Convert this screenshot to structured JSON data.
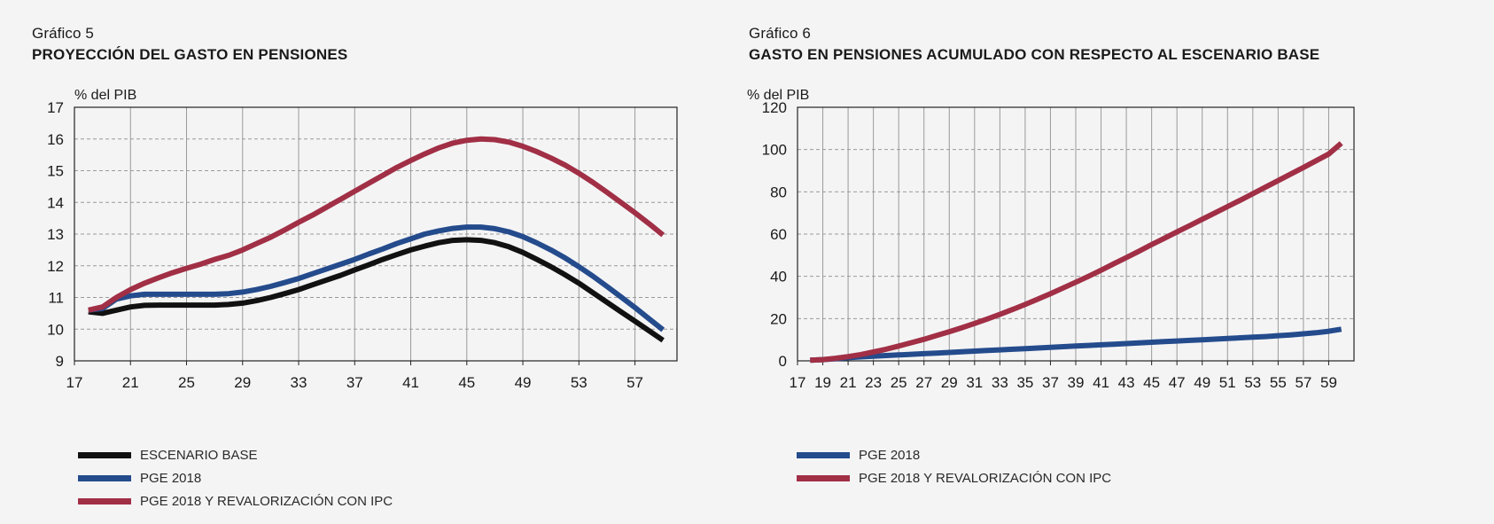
{
  "charts": [
    {
      "label": "Gráfico 5",
      "title": "PROYECCIÓN DEL GASTO EN PENSIONES",
      "unit": "% del PIB",
      "legend": [
        "ESCENARIO BASE",
        "PGE 2018",
        "PGE 2018 Y REVALORIZACIÓN CON IPC"
      ]
    },
    {
      "label": "Gráfico 6",
      "title": "GASTO EN PENSIONES ACUMULADO CON RESPECTO AL ESCENARIO BASE",
      "unit": "% del PIB",
      "legend": [
        "PGE 2018",
        "PGE 2018 Y REVALORIZACIÓN CON IPC"
      ]
    }
  ],
  "colors": {
    "black": "#111111",
    "blue": "#244b8c",
    "red": "#a12f45",
    "grid": "#9a9a9a"
  },
  "chart_data": [
    {
      "type": "line",
      "title": "PROYECCIÓN DEL GASTO EN PENSIONES",
      "ylabel": "% del PIB",
      "xlim": [
        17,
        60
      ],
      "ylim": [
        9,
        17
      ],
      "xticks": [
        "17",
        "21",
        "25",
        "29",
        "33",
        "37",
        "41",
        "45",
        "49",
        "53",
        "57"
      ],
      "yticks": [
        "9",
        "10",
        "11",
        "12",
        "13",
        "14",
        "15",
        "16",
        "17"
      ],
      "grid": true,
      "legend_position": "bottom",
      "x": [
        18,
        19,
        20,
        21,
        22,
        23,
        24,
        25,
        26,
        27,
        28,
        29,
        30,
        31,
        32,
        33,
        34,
        35,
        36,
        37,
        38,
        39,
        40,
        41,
        42,
        43,
        44,
        45,
        46,
        47,
        48,
        49,
        50,
        51,
        52,
        53,
        54,
        55,
        56,
        57,
        58,
        59,
        60
      ],
      "series": [
        {
          "name": "ESCENARIO BASE",
          "color": "black",
          "values": [
            10.55,
            10.5,
            10.6,
            10.7,
            10.75,
            10.76,
            10.76,
            10.76,
            10.76,
            10.76,
            10.78,
            10.82,
            10.9,
            11.0,
            11.12,
            11.25,
            11.4,
            11.55,
            11.7,
            11.87,
            12.03,
            12.2,
            12.35,
            12.5,
            12.62,
            12.73,
            12.8,
            12.82,
            12.8,
            12.73,
            12.6,
            12.42,
            12.2,
            11.97,
            11.72,
            11.45,
            11.15,
            10.85,
            10.55,
            10.25,
            9.95,
            9.65,
            null
          ]
        },
        {
          "name": "PGE 2018",
          "color": "blue",
          "values": [
            10.6,
            10.65,
            10.95,
            11.05,
            11.1,
            11.1,
            11.1,
            11.1,
            11.1,
            11.1,
            11.12,
            11.17,
            11.25,
            11.35,
            11.47,
            11.6,
            11.75,
            11.9,
            12.05,
            12.2,
            12.37,
            12.53,
            12.7,
            12.85,
            13.0,
            13.1,
            13.18,
            13.22,
            13.22,
            13.17,
            13.07,
            12.92,
            12.72,
            12.5,
            12.25,
            11.97,
            11.67,
            11.35,
            11.02,
            10.68,
            10.33,
            9.98,
            null
          ]
        },
        {
          "name": "PGE 2018 Y REVALORIZACIÓN CON IPC",
          "color": "red",
          "values": [
            10.6,
            10.7,
            11.0,
            11.25,
            11.45,
            11.62,
            11.78,
            11.92,
            12.05,
            12.2,
            12.33,
            12.5,
            12.7,
            12.9,
            13.13,
            13.37,
            13.6,
            13.85,
            14.1,
            14.35,
            14.6,
            14.85,
            15.1,
            15.32,
            15.53,
            15.72,
            15.87,
            15.96,
            16.0,
            15.98,
            15.9,
            15.77,
            15.6,
            15.4,
            15.18,
            14.92,
            14.63,
            14.32,
            14.0,
            13.67,
            13.33,
            12.97,
            null
          ]
        }
      ]
    },
    {
      "type": "line",
      "title": "GASTO EN PENSIONES ACUMULADO CON RESPECTO AL ESCENARIO BASE",
      "ylabel": "% del PIB",
      "xlim": [
        17,
        61
      ],
      "ylim": [
        0,
        120
      ],
      "xticks": [
        "17",
        "19",
        "21",
        "23",
        "25",
        "27",
        "29",
        "31",
        "33",
        "35",
        "37",
        "39",
        "41",
        "43",
        "45",
        "47",
        "49",
        "51",
        "53",
        "55",
        "57",
        "59"
      ],
      "yticks": [
        "0",
        "20",
        "40",
        "60",
        "80",
        "100",
        "120"
      ],
      "grid": true,
      "legend_position": "bottom",
      "x": [
        18,
        19,
        20,
        21,
        22,
        23,
        24,
        25,
        26,
        27,
        28,
        29,
        30,
        31,
        32,
        33,
        34,
        35,
        36,
        37,
        38,
        39,
        40,
        41,
        42,
        43,
        44,
        45,
        46,
        47,
        48,
        49,
        50,
        51,
        52,
        53,
        54,
        55,
        56,
        57,
        58,
        59,
        60
      ],
      "series": [
        {
          "name": "PGE 2018",
          "color": "blue",
          "values": [
            0.3,
            0.6,
            1.0,
            1.5,
            1.9,
            2.2,
            2.5,
            2.8,
            3.1,
            3.4,
            3.7,
            4.0,
            4.3,
            4.6,
            4.9,
            5.2,
            5.5,
            5.8,
            6.1,
            6.4,
            6.7,
            7.0,
            7.3,
            7.6,
            7.9,
            8.2,
            8.5,
            8.8,
            9.1,
            9.4,
            9.7,
            10.0,
            10.3,
            10.6,
            10.9,
            11.2,
            11.5,
            11.9,
            12.3,
            12.8,
            13.3,
            14.0,
            15.0
          ]
        },
        {
          "name": "PGE 2018 Y REVALORIZACIÓN CON IPC",
          "color": "red",
          "values": [
            0.3,
            0.6,
            1.2,
            2.0,
            3.0,
            4.2,
            5.5,
            7.0,
            8.6,
            10.2,
            12.0,
            13.8,
            15.7,
            17.7,
            19.8,
            22.0,
            24.3,
            26.7,
            29.2,
            31.8,
            34.5,
            37.2,
            40.0,
            42.9,
            45.9,
            48.9,
            51.9,
            55.0,
            58.0,
            61.0,
            64.0,
            67.0,
            70.0,
            73.0,
            76.0,
            79.1,
            82.2,
            85.3,
            88.4,
            91.5,
            94.7,
            97.9,
            103.0
          ]
        }
      ]
    }
  ]
}
